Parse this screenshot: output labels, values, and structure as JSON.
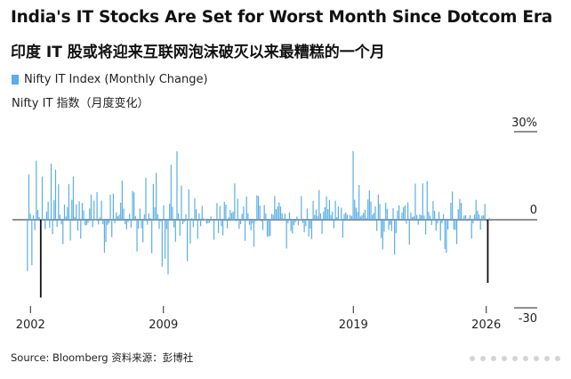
{
  "title_en": "India's IT Stocks Are Set for Worst Month Since Dotcom Era",
  "title_zh": "印度 IT 股或将迎来互联网泡沫破灭以来最糟糕的一个月",
  "legend": {
    "label": "Nifty IT Index (Monthly Change)",
    "label_zh": "Nifty IT 指数（月度变化）",
    "color": "#5aaee8"
  },
  "source": "Source: Bloomberg  资料来源：彭博社",
  "chart_data": {
    "type": "bar",
    "title": "Nifty IT Index (Monthly Change)",
    "xlabel": "",
    "ylabel": "",
    "ylim": [
      -30,
      30
    ],
    "y_ticks": [
      {
        "value": 30,
        "label": "30%"
      },
      {
        "value": 0,
        "label": "0"
      },
      {
        "value": -30,
        "label": "-30"
      }
    ],
    "x_ticks": [
      {
        "value": 2002,
        "label": "2002"
      },
      {
        "value": 2009,
        "label": "2009"
      },
      {
        "value": 2019,
        "label": "2019"
      },
      {
        "value": 2026,
        "label": "2026"
      }
    ],
    "x_range": [
      2001.8,
      2026.2
    ],
    "highlight_color": "#111111",
    "highlights": [
      {
        "x": 2002.54,
        "value": -26.5
      },
      {
        "x": 2026.08,
        "value": -21.5
      }
    ],
    "series": [
      {
        "name": "Nifty IT Index (Monthly Change)",
        "values": [
          -17.5,
          15.4,
          2,
          -15.5,
          1.5,
          -3.5,
          20.1,
          3.3,
          0.9,
          -10.2,
          14.7,
          0.3,
          -3.2,
          2.8,
          6.1,
          -2.7,
          19.1,
          -4.9,
          6.7,
          17.1,
          -2.4,
          12.1,
          1.7,
          -1.6,
          -8.3,
          5.2,
          1.1,
          4.3,
          12.1,
          -7.1,
          6.8,
          14.7,
          0.9,
          5.2,
          -3.7,
          6.3,
          -6.4,
          5.7,
          3.2,
          -1.9,
          -1.8,
          -1.1,
          3.8,
          8.6,
          -2.5,
          6.5,
          -0.2,
          9.4,
          -1.6,
          0.8,
          6.5,
          -1.5,
          -11.2,
          -7.6,
          -1.8,
          -1.2,
          8.5,
          -5.9,
          8.9,
          -1.2,
          2.5,
          1.2,
          1.7,
          5.8,
          13.3,
          3.8,
          -1.5,
          -3.3,
          -0.8,
          2,
          -2.7,
          9.8,
          9.3,
          1.2,
          -10.8,
          -3,
          3.8,
          -2.9,
          -7.7,
          1.9,
          14.3,
          -1.7,
          2.2,
          0.6,
          -11.4,
          12.2,
          4.2,
          15.9,
          1.9,
          -3.1,
          -0.5,
          -16,
          4.9,
          -13.3,
          -3.2,
          -18.6,
          5.4,
          18.7,
          4.4,
          -2.6,
          -7.5,
          23.3,
          2.2,
          -5.4,
          11.6,
          -1.5,
          -0.7,
          1.9,
          -14.1,
          10.3,
          -8.1,
          0.6,
          -2.5,
          7.3,
          3.6,
          -6.5,
          2.2,
          -2.2,
          4.7,
          0.5,
          0.1,
          -1.3,
          -1.2,
          -1,
          1.1,
          -0.4,
          -6.8,
          -0.4,
          5.7,
          -4.5,
          4.7,
          -2.2,
          -5.3,
          6.1,
          5.2,
          -2.9,
          0.8,
          3.3,
          2.3,
          2.8,
          12.4,
          -0.5,
          7.2,
          -3.1,
          -1.5,
          2,
          4.5,
          -7.2,
          7.9,
          2.2,
          -1.7,
          -3.6,
          -1.3,
          -9.2,
          -0.5,
          8.3,
          8.1,
          4.8,
          -0.6,
          -3.5,
          5,
          2.1,
          -5.7,
          -5.7,
          -5.5,
          2,
          1.7,
          8.1,
          3.6,
          4.5,
          5.9,
          4.5,
          2.2,
          0.5,
          2.1,
          -9.8,
          -1.2,
          2.5,
          -3.8,
          -4.7,
          -1.8,
          -0.8,
          1.1,
          -1.9,
          0.2,
          8.1,
          -1.1,
          -4.3,
          -2.2,
          3.8,
          -5.7,
          -3,
          -6.6,
          6.4,
          1.6,
          3.5,
          1.2,
          10.1,
          2.2,
          -4.8,
          2.8,
          4.3,
          7.9,
          3.6,
          6.8,
          1.6,
          2.8,
          -2.9,
          6.5,
          0.9,
          4.5,
          0.2,
          4.1,
          -6.1,
          2,
          2.5,
          1.7,
          0.3,
          1.6,
          1.2,
          23.4,
          6.8,
          4.1,
          2.7,
          11.8,
          1.1,
          1.6,
          2.3,
          3.4,
          0.6,
          6.9,
          10,
          6.2,
          1.6,
          2.3,
          4.6,
          -3.8,
          8.6,
          5.4,
          -6.2,
          -10.1,
          -4.1,
          5.8,
          3.7,
          -3.5,
          -1.7,
          -3.8,
          3.9,
          -11.9,
          -4.6,
          3.1,
          4.9,
          -0.3,
          2.5,
          4.3,
          4.9,
          -1.4,
          5.9,
          -8.5,
          2.5,
          0.9,
          1.2,
          12.3,
          1.6,
          -1.7,
          1.8,
          1.5,
          12.4,
          1.4,
          -5,
          13.2,
          2.7,
          1.4,
          -1.8,
          6.3,
          3,
          -3.7,
          -1.3,
          2.7,
          -7.1,
          -1.2,
          1.9,
          -10,
          -11.3,
          -3.3,
          -0.3,
          5.8,
          9.6,
          -3.3,
          -3.5,
          -8.3,
          3.6,
          7.1,
          5.7,
          0.4,
          1.4,
          1.5,
          -0.5,
          0.5,
          1.6,
          -6.4,
          -1.3,
          1.8,
          6.8,
          3.1,
          1.8,
          -3.4,
          1.4,
          1.5,
          5.4,
          -0.5,
          -2.2,
          0.6
        ]
      }
    ]
  }
}
